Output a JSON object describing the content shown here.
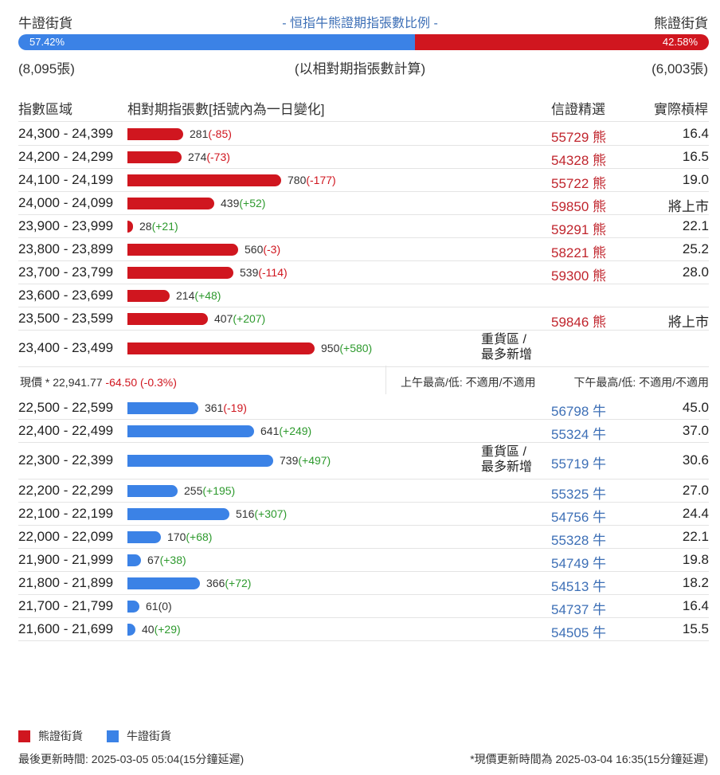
{
  "header": {
    "bull_label": "牛證街貨",
    "title": "- 恒指牛熊證期指張數比例 -",
    "bear_label": "熊證街貨"
  },
  "ratio": {
    "bull_pct_value": 57.42,
    "bull_pct": "57.42%",
    "bear_pct": "42.58%",
    "bull_count": "(8,095張)",
    "note": "(以相對期指張數計算)",
    "bear_count": "(6,003張)"
  },
  "columns": {
    "range": "指數區域",
    "count": "相對期指張數[括號內為一日變化]",
    "warrant": "信證精選",
    "lever": "實際槓桿"
  },
  "bear_rows": [
    {
      "range": "24,300 - 24,399",
      "count": 281,
      "count_text": "281",
      "change": "(-85)",
      "sign": "neg",
      "warrant": "55729 熊",
      "lever": "16.4",
      "heavy": ""
    },
    {
      "range": "24,200 - 24,299",
      "count": 274,
      "count_text": "274",
      "change": "(-73)",
      "sign": "neg",
      "warrant": "54328 熊",
      "lever": "16.5",
      "heavy": ""
    },
    {
      "range": "24,100 - 24,199",
      "count": 780,
      "count_text": "780",
      "change": "(-177)",
      "sign": "neg",
      "warrant": "55722 熊",
      "lever": "19.0",
      "heavy": ""
    },
    {
      "range": "24,000 - 24,099",
      "count": 439,
      "count_text": "439",
      "change": "(+52)",
      "sign": "pos",
      "warrant": "59850 熊",
      "lever": "將上市",
      "heavy": ""
    },
    {
      "range": "23,900 - 23,999",
      "count": 28,
      "count_text": "28",
      "change": "(+21)",
      "sign": "pos",
      "warrant": "59291 熊",
      "lever": "22.1",
      "heavy": ""
    },
    {
      "range": "23,800 - 23,899",
      "count": 560,
      "count_text": "560",
      "change": "(-3)",
      "sign": "neg",
      "warrant": "58221 熊",
      "lever": "25.2",
      "heavy": ""
    },
    {
      "range": "23,700 - 23,799",
      "count": 539,
      "count_text": "539",
      "change": "(-114)",
      "sign": "neg",
      "warrant": "59300 熊",
      "lever": "28.0",
      "heavy": ""
    },
    {
      "range": "23,600 - 23,699",
      "count": 214,
      "count_text": "214",
      "change": "(+48)",
      "sign": "pos",
      "warrant": "",
      "lever": "",
      "heavy": ""
    },
    {
      "range": "23,500 - 23,599",
      "count": 407,
      "count_text": "407",
      "change": "(+207)",
      "sign": "pos",
      "warrant": "59846 熊",
      "lever": "將上市",
      "heavy": ""
    },
    {
      "range": "23,400 - 23,499",
      "count": 950,
      "count_text": "950",
      "change": "(+580)",
      "sign": "pos",
      "warrant": "",
      "lever": "",
      "heavy": "重貨區 / 最多新增"
    }
  ],
  "price": {
    "label": "現價 *",
    "value": "22,941.77",
    "change": "-64.50 (-0.3%)",
    "am": "上午最高/低: 不適用/不適用",
    "pm": "下午最高/低: 不適用/不適用"
  },
  "bull_rows": [
    {
      "range": "22,500 - 22,599",
      "count": 361,
      "count_text": "361",
      "change": "(-19)",
      "sign": "neg",
      "warrant": "56798 牛",
      "lever": "45.0",
      "heavy": ""
    },
    {
      "range": "22,400 - 22,499",
      "count": 641,
      "count_text": "641",
      "change": "(+249)",
      "sign": "pos",
      "warrant": "55324 牛",
      "lever": "37.0",
      "heavy": ""
    },
    {
      "range": "22,300 - 22,399",
      "count": 739,
      "count_text": "739",
      "change": "(+497)",
      "sign": "pos",
      "warrant": "55719 牛",
      "lever": "30.6",
      "heavy": "重貨區 / 最多新增"
    },
    {
      "range": "22,200 - 22,299",
      "count": 255,
      "count_text": "255",
      "change": "(+195)",
      "sign": "pos",
      "warrant": "55325 牛",
      "lever": "27.0",
      "heavy": ""
    },
    {
      "range": "22,100 - 22,199",
      "count": 516,
      "count_text": "516",
      "change": "(+307)",
      "sign": "pos",
      "warrant": "54756 牛",
      "lever": "24.4",
      "heavy": ""
    },
    {
      "range": "22,000 - 22,099",
      "count": 170,
      "count_text": "170",
      "change": "(+68)",
      "sign": "pos",
      "warrant": "55328 牛",
      "lever": "22.1",
      "heavy": ""
    },
    {
      "range": "21,900 - 21,999",
      "count": 67,
      "count_text": "67",
      "change": "(+38)",
      "sign": "pos",
      "warrant": "54749 牛",
      "lever": "19.8",
      "heavy": ""
    },
    {
      "range": "21,800 - 21,899",
      "count": 366,
      "count_text": "366",
      "change": "(+72)",
      "sign": "pos",
      "warrant": "54513 牛",
      "lever": "18.2",
      "heavy": ""
    },
    {
      "range": "21,700 - 21,799",
      "count": 61,
      "count_text": "61",
      "change": "(0)",
      "sign": "zero",
      "warrant": "54737 牛",
      "lever": "16.4",
      "heavy": ""
    },
    {
      "range": "21,600 - 21,699",
      "count": 40,
      "count_text": "40",
      "change": "(+29)",
      "sign": "pos",
      "warrant": "54505 牛",
      "lever": "15.5",
      "heavy": ""
    }
  ],
  "legend": {
    "bear": "熊證街貨",
    "bull": "牛證街貨"
  },
  "footer": {
    "updated": "最後更新時間: 2025-03-05 05:04(15分鐘延遲)",
    "price_updated": "*現價更新時間為 2025-03-04 16:35(15分鐘延遲)"
  },
  "colors": {
    "bear": "#d0161f",
    "bull": "#3b82e6",
    "positive": "#2e9a2e",
    "negative": "#d0161f"
  }
}
